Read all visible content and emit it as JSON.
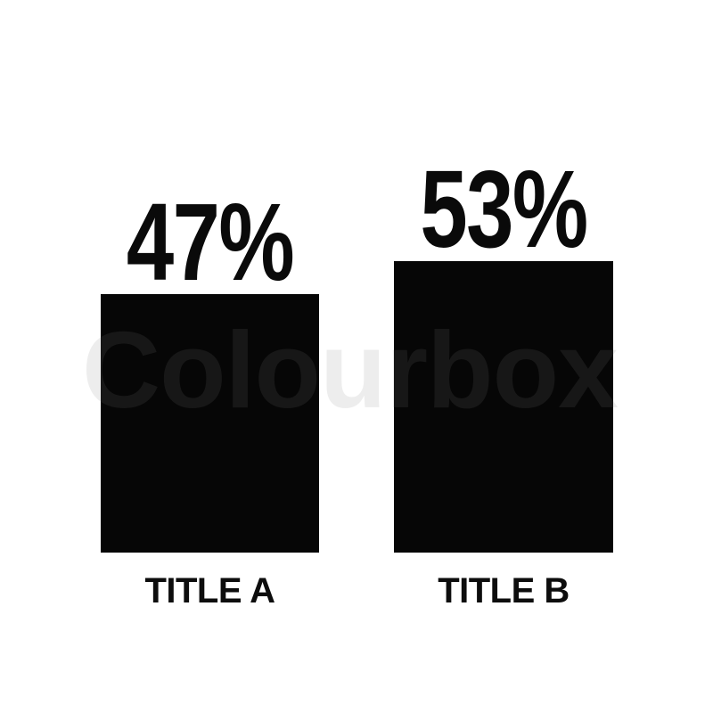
{
  "page": {
    "background": "#ffffff"
  },
  "watermark": {
    "text": "Colourbox",
    "color": "rgba(130,130,130,0.14)"
  },
  "chart_data": {
    "type": "bar",
    "categories": [
      "TITLE A",
      "TITLE B"
    ],
    "values": [
      47,
      53
    ],
    "value_labels": [
      "47%",
      "53%"
    ],
    "series": [
      {
        "name": "percentage",
        "values": [
          47,
          53
        ]
      }
    ],
    "title": "",
    "xlabel": "",
    "ylabel": "",
    "ylim": [
      0,
      100
    ],
    "grid": false,
    "axes_visible": false,
    "legend_position": "none",
    "bar_color": "#060606",
    "label_color": "#0a0a0a",
    "background_color": "#ffffff"
  }
}
